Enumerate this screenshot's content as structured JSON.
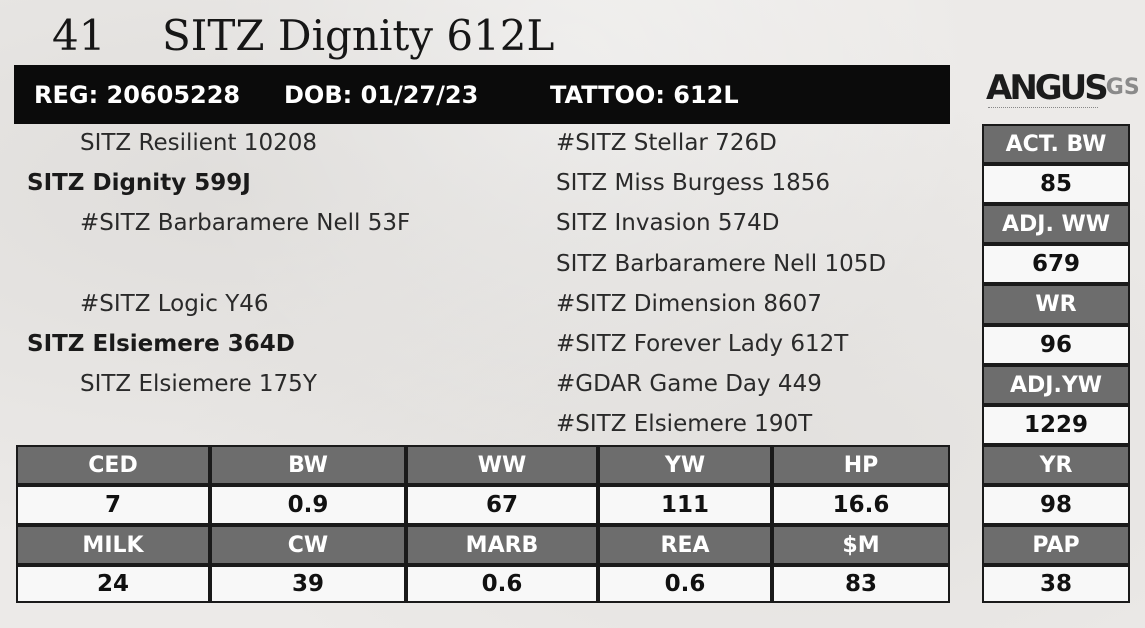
{
  "lot": {
    "number": "41",
    "name": "SITZ Dignity 612L"
  },
  "ids": {
    "reg": "REG: 20605228",
    "dob": "DOB: 01/27/23",
    "tattoo": "TATTOO: 612L"
  },
  "logo": {
    "text": "ANGUS",
    "suffix": "GS"
  },
  "pedigree": {
    "sire_sire": "SITZ Resilient 10208",
    "sire": "SITZ Dignity 599J",
    "sire_dam": "#SITZ Barbaramere Nell 53F",
    "dam_sire": "#SITZ Logic Y46",
    "dam": "SITZ Elsiemere 364D",
    "dam_dam": "SITZ Elsiemere 175Y",
    "right": [
      "#SITZ Stellar 726D",
      "SITZ Miss Burgess 1856",
      "SITZ Invasion 574D",
      "SITZ Barbaramere Nell 105D",
      "#SITZ Dimension 8607",
      "#SITZ Forever Lady 612T",
      "#GDAR Game Day 449",
      "#SITZ Elsiemere 190T"
    ]
  },
  "side": [
    {
      "label": "ACT. BW",
      "value": "85"
    },
    {
      "label": "ADJ. WW",
      "value": "679"
    },
    {
      "label": "WR",
      "value": "96"
    },
    {
      "label": "ADJ.YW",
      "value": "1229"
    },
    {
      "label": "YR",
      "value": "98"
    },
    {
      "label": "PAP",
      "value": "38"
    }
  ],
  "epd_row1": [
    {
      "label": "CED",
      "value": "7"
    },
    {
      "label": "BW",
      "value": "0.9"
    },
    {
      "label": "WW",
      "value": "67"
    },
    {
      "label": "YW",
      "value": "111"
    },
    {
      "label": "HP",
      "value": "16.6"
    }
  ],
  "epd_row2": [
    {
      "label": "MILK",
      "value": "24"
    },
    {
      "label": "CW",
      "value": "39"
    },
    {
      "label": "MARB",
      "value": "0.6"
    },
    {
      "label": "REA",
      "value": "0.6"
    },
    {
      "label": "$M",
      "value": "83"
    }
  ],
  "colors": {
    "header_bar": "#0b0b0b",
    "cell_header": "#6d6d6d",
    "background": "#eceae8"
  }
}
